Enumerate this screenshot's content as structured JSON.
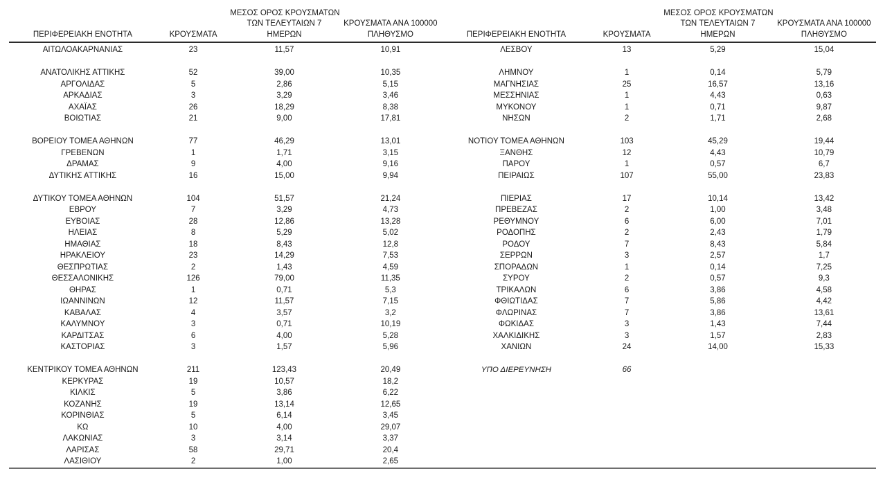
{
  "colors": {
    "background": "#ffffff",
    "text": "#1a1a1a",
    "header_rule": "#2b2b2b",
    "bottom_rule": "#6e6e6e"
  },
  "columns": {
    "region": "ΠΕΡΙΦΕΡΕΙΑΚΗ ΕΝΟΤΗΤΑ",
    "cases": "ΚΡΟΥΣΜΑΤΑ",
    "avg7_line1": "ΜΕΣΟΣ ΟΡΟΣ ΚΡΟΥΣΜΑΤΩΝ",
    "avg7_line2": "ΤΩΝ ΤΕΛΕΥΤΑΙΩΝ 7",
    "avg7_line3": "ΗΜΕΡΩΝ",
    "per100k_line1": "ΚΡΟΥΣΜΑΤΑ ΑΝΑ 100000",
    "per100k_line2": "ΠΛΗΘΥΣΜΟ"
  },
  "left_table": {
    "rows": [
      {
        "name": "ΑΙΤΩΛΟΑΚΑΡΝΑΝΙΑΣ",
        "cases": "23",
        "avg": "11,57",
        "per100k": "10,91"
      },
      {
        "spacer": true
      },
      {
        "name": "ΑΝΑΤΟΛΙΚΗΣ ΑΤΤΙΚΗΣ",
        "cases": "52",
        "avg": "39,00",
        "per100k": "10,35"
      },
      {
        "name": "ΑΡΓΟΛΙΔΑΣ",
        "cases": "5",
        "avg": "2,86",
        "per100k": "5,15"
      },
      {
        "name": "ΑΡΚΑΔΙΑΣ",
        "cases": "3",
        "avg": "3,29",
        "per100k": "3,46"
      },
      {
        "name": "ΑΧΑΪΑΣ",
        "cases": "26",
        "avg": "18,29",
        "per100k": "8,38"
      },
      {
        "name": "ΒΟΙΩΤΙΑΣ",
        "cases": "21",
        "avg": "9,00",
        "per100k": "17,81"
      },
      {
        "spacer": true
      },
      {
        "name": "ΒΟΡΕΙΟΥ ΤΟΜΕΑ ΑΘΗΝΩΝ",
        "cases": "77",
        "avg": "46,29",
        "per100k": "13,01"
      },
      {
        "name": "ΓΡΕΒΕΝΩΝ",
        "cases": "1",
        "avg": "1,71",
        "per100k": "3,15"
      },
      {
        "name": "ΔΡΑΜΑΣ",
        "cases": "9",
        "avg": "4,00",
        "per100k": "9,16"
      },
      {
        "name": "ΔΥΤΙΚΗΣ ΑΤΤΙΚΗΣ",
        "cases": "16",
        "avg": "15,00",
        "per100k": "9,94"
      },
      {
        "spacer": true
      },
      {
        "name": "ΔΥΤΙΚΟΥ ΤΟΜΕΑ ΑΘΗΝΩΝ",
        "cases": "104",
        "avg": "51,57",
        "per100k": "21,24"
      },
      {
        "name": "ΕΒΡΟΥ",
        "cases": "7",
        "avg": "3,29",
        "per100k": "4,73"
      },
      {
        "name": "ΕΥΒΟΙΑΣ",
        "cases": "28",
        "avg": "12,86",
        "per100k": "13,28"
      },
      {
        "name": "ΗΛΕΙΑΣ",
        "cases": "8",
        "avg": "5,29",
        "per100k": "5,02"
      },
      {
        "name": "ΗΜΑΘΙΑΣ",
        "cases": "18",
        "avg": "8,43",
        "per100k": "12,8"
      },
      {
        "name": "ΗΡΑΚΛΕΙΟΥ",
        "cases": "23",
        "avg": "14,29",
        "per100k": "7,53"
      },
      {
        "name": "ΘΕΣΠΡΩΤΙΑΣ",
        "cases": "2",
        "avg": "1,43",
        "per100k": "4,59"
      },
      {
        "name": "ΘΕΣΣΑΛΟΝΙΚΗΣ",
        "cases": "126",
        "avg": "79,00",
        "per100k": "11,35"
      },
      {
        "name": "ΘΗΡΑΣ",
        "cases": "1",
        "avg": "0,71",
        "per100k": "5,3"
      },
      {
        "name": "ΙΩΑΝΝΙΝΩΝ",
        "cases": "12",
        "avg": "11,57",
        "per100k": "7,15"
      },
      {
        "name": "ΚΑΒΑΛΑΣ",
        "cases": "4",
        "avg": "3,57",
        "per100k": "3,2"
      },
      {
        "name": "ΚΑΛΥΜΝΟΥ",
        "cases": "3",
        "avg": "0,71",
        "per100k": "10,19"
      },
      {
        "name": "ΚΑΡΔΙΤΣΑΣ",
        "cases": "6",
        "avg": "4,00",
        "per100k": "5,28"
      },
      {
        "name": "ΚΑΣΤΟΡΙΑΣ",
        "cases": "3",
        "avg": "1,57",
        "per100k": "5,96"
      },
      {
        "spacer": true
      },
      {
        "name": "ΚΕΝΤΡΙΚΟΥ ΤΟΜΕΑ ΑΘΗΝΩΝ",
        "cases": "211",
        "avg": "123,43",
        "per100k": "20,49"
      },
      {
        "name": "ΚΕΡΚΥΡΑΣ",
        "cases": "19",
        "avg": "10,57",
        "per100k": "18,2"
      },
      {
        "name": "ΚΙΛΚΙΣ",
        "cases": "5",
        "avg": "3,86",
        "per100k": "6,22"
      },
      {
        "name": "ΚΟΖΑΝΗΣ",
        "cases": "19",
        "avg": "13,14",
        "per100k": "12,65"
      },
      {
        "name": "ΚΟΡΙΝΘΙΑΣ",
        "cases": "5",
        "avg": "6,14",
        "per100k": "3,45"
      },
      {
        "name": "ΚΩ",
        "cases": "10",
        "avg": "4,00",
        "per100k": "29,07"
      },
      {
        "name": "ΛΑΚΩΝΙΑΣ",
        "cases": "3",
        "avg": "3,14",
        "per100k": "3,37"
      },
      {
        "name": "ΛΑΡΙΣΑΣ",
        "cases": "58",
        "avg": "29,71",
        "per100k": "20,4"
      },
      {
        "name": "ΛΑΣΙΘΙΟΥ",
        "cases": "2",
        "avg": "1,00",
        "per100k": "2,65"
      }
    ]
  },
  "right_table": {
    "rows": [
      {
        "name": "ΛΕΣΒΟΥ",
        "cases": "13",
        "avg": "5,29",
        "per100k": "15,04"
      },
      {
        "spacer": true
      },
      {
        "name": "ΛΗΜΝΟΥ",
        "cases": "1",
        "avg": "0,14",
        "per100k": "5,79"
      },
      {
        "name": "ΜΑΓΝΗΣΙΑΣ",
        "cases": "25",
        "avg": "16,57",
        "per100k": "13,16"
      },
      {
        "name": "ΜΕΣΣΗΝΙΑΣ",
        "cases": "1",
        "avg": "4,43",
        "per100k": "0,63"
      },
      {
        "name": "ΜΥΚΟΝΟΥ",
        "cases": "1",
        "avg": "0,71",
        "per100k": "9,87"
      },
      {
        "name": "ΝΗΣΩΝ",
        "cases": "2",
        "avg": "1,71",
        "per100k": "2,68"
      },
      {
        "spacer": true
      },
      {
        "name": "ΝΟΤΙΟΥ ΤΟΜΕΑ ΑΘΗΝΩΝ",
        "cases": "103",
        "avg": "45,29",
        "per100k": "19,44"
      },
      {
        "name": "ΞΑΝΘΗΣ",
        "cases": "12",
        "avg": "4,43",
        "per100k": "10,79"
      },
      {
        "name": "ΠΑΡΟΥ",
        "cases": "1",
        "avg": "0,57",
        "per100k": "6,7"
      },
      {
        "name": "ΠΕΙΡΑΙΩΣ",
        "cases": "107",
        "avg": "55,00",
        "per100k": "23,83"
      },
      {
        "spacer": true
      },
      {
        "name": "ΠΙΕΡΙΑΣ",
        "cases": "17",
        "avg": "10,14",
        "per100k": "13,42"
      },
      {
        "name": "ΠΡΕΒΕΖΑΣ",
        "cases": "2",
        "avg": "1,00",
        "per100k": "3,48"
      },
      {
        "name": "ΡΕΘΥΜΝΟΥ",
        "cases": "6",
        "avg": "6,00",
        "per100k": "7,01"
      },
      {
        "name": "ΡΟΔΟΠΗΣ",
        "cases": "2",
        "avg": "2,43",
        "per100k": "1,79"
      },
      {
        "name": "ΡΟΔΟΥ",
        "cases": "7",
        "avg": "8,43",
        "per100k": "5,84"
      },
      {
        "name": "ΣΕΡΡΩΝ",
        "cases": "3",
        "avg": "2,57",
        "per100k": "1,7"
      },
      {
        "name": "ΣΠΟΡΑΔΩΝ",
        "cases": "1",
        "avg": "0,14",
        "per100k": "7,25"
      },
      {
        "name": "ΣΥΡΟΥ",
        "cases": "2",
        "avg": "0,57",
        "per100k": "9,3"
      },
      {
        "name": "ΤΡΙΚΑΛΩΝ",
        "cases": "6",
        "avg": "3,86",
        "per100k": "4,58"
      },
      {
        "name": "ΦΘΙΩΤΙΔΑΣ",
        "cases": "7",
        "avg": "5,86",
        "per100k": "4,42"
      },
      {
        "name": "ΦΛΩΡΙΝΑΣ",
        "cases": "7",
        "avg": "3,86",
        "per100k": "13,61"
      },
      {
        "name": "ΦΩΚΙΔΑΣ",
        "cases": "3",
        "avg": "1,43",
        "per100k": "7,44"
      },
      {
        "name": "ΧΑΛΚΙΔΙΚΗΣ",
        "cases": "3",
        "avg": "1,57",
        "per100k": "2,83"
      },
      {
        "name": "ΧΑΝΙΩΝ",
        "cases": "24",
        "avg": "14,00",
        "per100k": "15,33"
      },
      {
        "spacer": true
      },
      {
        "name": "ΥΠΟ ΔΙΕΡΕΥΝΗΣΗ",
        "cases": "66",
        "avg": "",
        "per100k": "",
        "em": true
      }
    ]
  }
}
